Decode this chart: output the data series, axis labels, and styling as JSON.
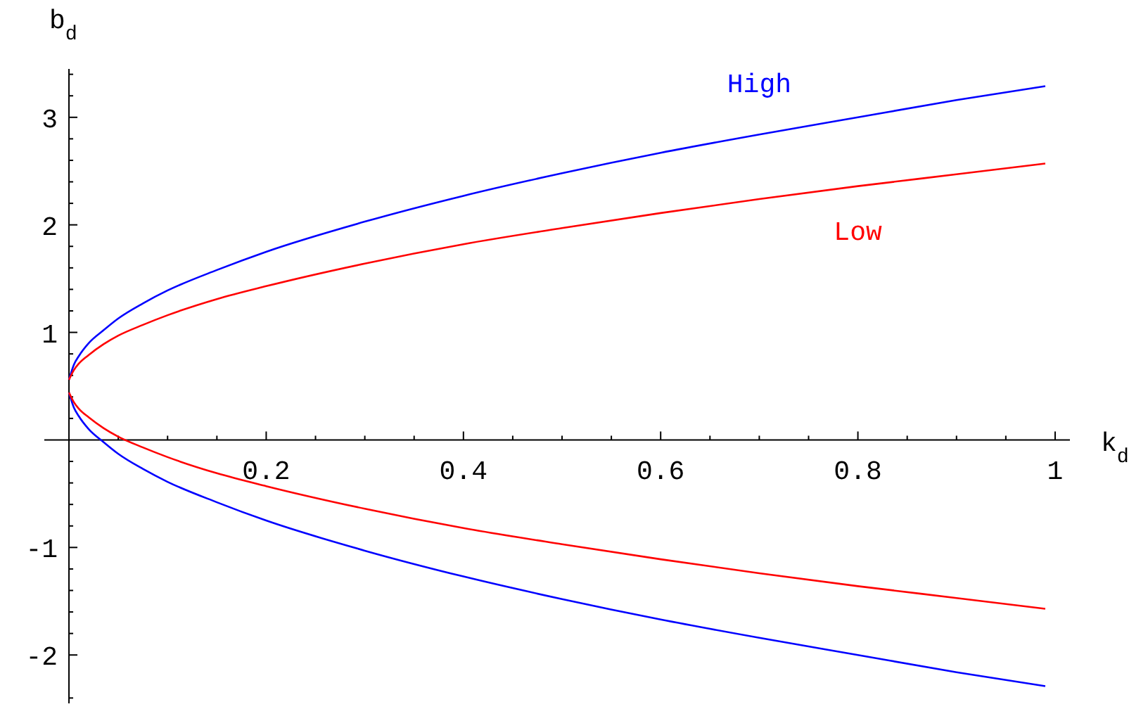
{
  "chart_data": {
    "type": "line",
    "xlabel": "k$_{d}$",
    "ylabel": "b$_{d}$",
    "xlim": [
      -0.025,
      1.015
    ],
    "ylim": [
      -2.45,
      3.45
    ],
    "xticks": [
      {
        "value": 0.05,
        "label": null
      },
      {
        "value": 0.1,
        "label": null
      },
      {
        "value": 0.15,
        "label": null
      },
      {
        "value": 0.2,
        "label": "0.2"
      },
      {
        "value": 0.25,
        "label": null
      },
      {
        "value": 0.3,
        "label": null
      },
      {
        "value": 0.35,
        "label": null
      },
      {
        "value": 0.4,
        "label": "0.4"
      },
      {
        "value": 0.45,
        "label": null
      },
      {
        "value": 0.5,
        "label": null
      },
      {
        "value": 0.55,
        "label": null
      },
      {
        "value": 0.6,
        "label": "0.6"
      },
      {
        "value": 0.65,
        "label": null
      },
      {
        "value": 0.7,
        "label": null
      },
      {
        "value": 0.75,
        "label": null
      },
      {
        "value": 0.8,
        "label": "0.8"
      },
      {
        "value": 0.85,
        "label": null
      },
      {
        "value": 0.9,
        "label": null
      },
      {
        "value": 0.95,
        "label": null
      },
      1
    ],
    "yticks": [
      {
        "value": -2.4,
        "label": null
      },
      -2,
      {
        "value": -1.8,
        "label": null
      },
      {
        "value": -1.6,
        "label": null
      },
      {
        "value": -1.4,
        "label": null
      },
      {
        "value": -1.2,
        "label": null
      },
      -1,
      {
        "value": -0.8,
        "label": null
      },
      {
        "value": -0.6,
        "label": null
      },
      {
        "value": -0.4,
        "label": null
      },
      {
        "value": -0.2,
        "label": null
      },
      {
        "value": 0.2,
        "label": null
      },
      {
        "value": 0.4,
        "label": null
      },
      {
        "value": 0.6,
        "label": null
      },
      {
        "value": 0.8,
        "label": null
      },
      1,
      {
        "value": 1.2,
        "label": null
      },
      {
        "value": 1.4,
        "label": null
      },
      {
        "value": 1.6,
        "label": null
      },
      {
        "value": 1.8,
        "label": null
      },
      2,
      {
        "value": 2.2,
        "label": null
      },
      {
        "value": 2.4,
        "label": null
      },
      {
        "value": 2.6,
        "label": null
      },
      {
        "value": 2.8,
        "label": null
      },
      3,
      {
        "value": 3.2,
        "label": null
      },
      {
        "value": 3.4,
        "label": null
      }
    ],
    "x": [
      0,
      0.005,
      0.01,
      0.02,
      0.035,
      0.05,
      0.075,
      0.1,
      0.15,
      0.2,
      0.3,
      0.4,
      0.5,
      0.6,
      0.7,
      0.8,
      0.9,
      0.99
    ],
    "grid": false,
    "marker": "none",
    "line_style": "solid",
    "series": [
      {
        "name": "High",
        "color": "#0000ff",
        "values": [
          0.56,
          0.7,
          0.78,
          0.9,
          1.02,
          1.13,
          1.27,
          1.39,
          1.58,
          1.75,
          2.03,
          2.27,
          2.48,
          2.67,
          2.84,
          3.0,
          3.16,
          3.29
        ]
      },
      {
        "color": "#0000ff",
        "values": [
          0.44,
          0.3,
          0.22,
          0.1,
          -0.02,
          -0.13,
          -0.27,
          -0.39,
          -0.58,
          -0.75,
          -1.03,
          -1.27,
          -1.48,
          -1.67,
          -1.84,
          -2.0,
          -2.16,
          -2.29
        ]
      },
      {
        "name": "Low",
        "color": "#ff0000",
        "values": [
          0.56,
          0.65,
          0.71,
          0.79,
          0.89,
          0.97,
          1.07,
          1.16,
          1.31,
          1.43,
          1.64,
          1.82,
          1.97,
          2.11,
          2.24,
          2.36,
          2.47,
          2.57
        ]
      },
      {
        "color": "#ff0000",
        "values": [
          0.44,
          0.35,
          0.29,
          0.21,
          0.11,
          0.03,
          -0.07,
          -0.16,
          -0.31,
          -0.43,
          -0.64,
          -0.82,
          -0.97,
          -1.11,
          -1.24,
          -1.36,
          -1.47,
          -1.57
        ]
      }
    ]
  }
}
